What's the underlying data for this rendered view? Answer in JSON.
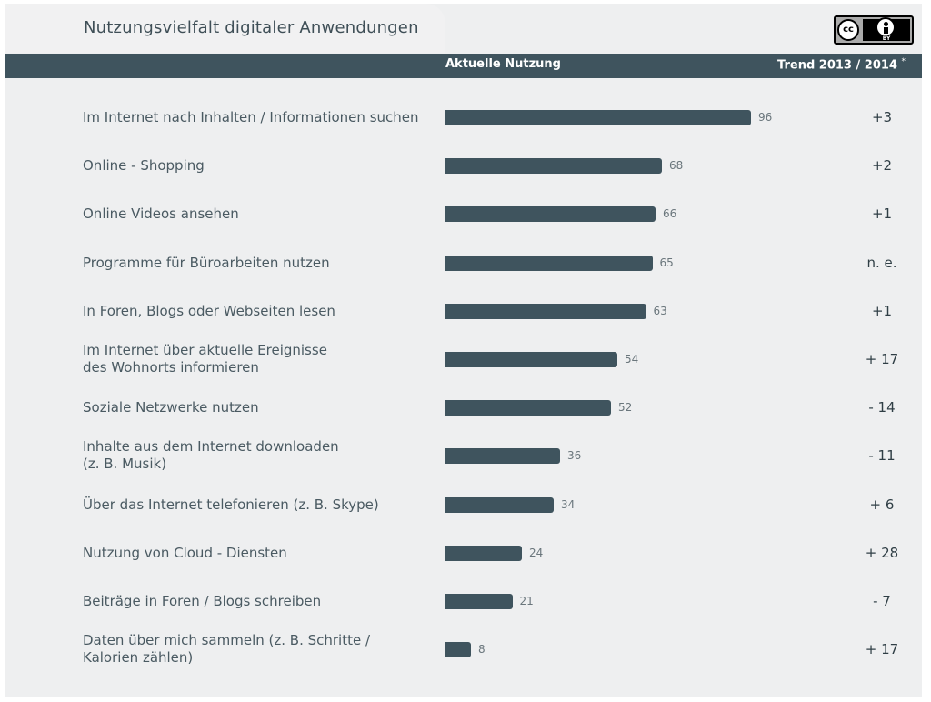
{
  "title": "Nutzungsvielfalt digitaler Anwendungen",
  "license_badge": {
    "symbol": "cc",
    "sublabel": "BY"
  },
  "header": {
    "current_label": "Aktuelle Nutzung",
    "trend_label": "Trend 2013 / 2014",
    "trend_marker": "*"
  },
  "chart_data": {
    "type": "bar",
    "orientation": "horizontal",
    "title": "Nutzungsvielfalt digitaler Anwendungen",
    "xlabel": "",
    "ylabel": "",
    "xlim": [
      0,
      100
    ],
    "categories": [
      "Im Internet nach Inhalten / Informationen suchen",
      "Online - Shopping",
      "Online Videos ansehen",
      "Programme für Büroarbeiten nutzen",
      "In Foren, Blogs oder Webseiten lesen",
      "Im Internet über aktuelle Ereignisse\ndes Wohnorts informieren",
      "Soziale Netzwerke nutzen",
      "Inhalte aus dem Internet downloaden\n(z. B. Musik)",
      "Über das Internet telefonieren (z. B. Skype)",
      "Nutzung von Cloud - Diensten",
      "Beiträge in Foren / Blogs schreiben",
      "Daten über mich sammeln (z. B. Schritte /\nKalorien zählen)"
    ],
    "series": [
      {
        "name": "Aktuelle Nutzung",
        "values": [
          96,
          68,
          66,
          65,
          63,
          54,
          52,
          36,
          34,
          24,
          21,
          8
        ]
      }
    ],
    "trend": [
      "+3",
      "+2",
      "+1",
      "n. e.",
      "+1",
      "+ 17",
      "- 14",
      "- 11",
      "+ 6",
      "+ 28",
      "- 7",
      "+ 17"
    ],
    "bar_color": "#3f545e"
  }
}
